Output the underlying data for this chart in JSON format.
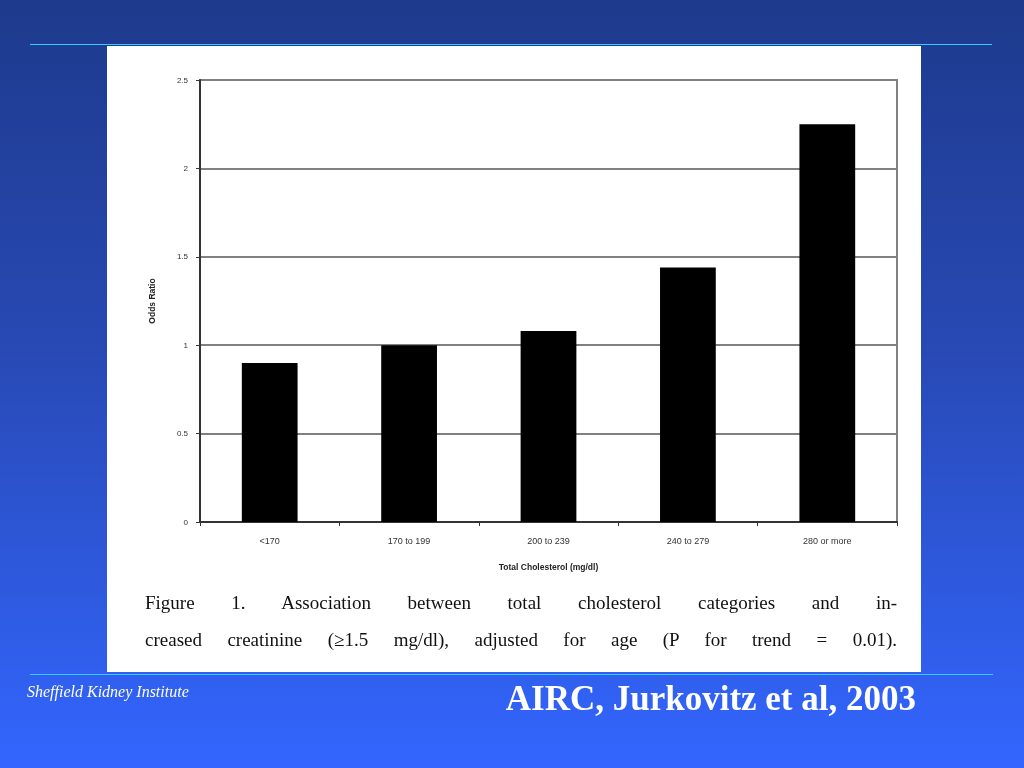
{
  "chart_data": {
    "type": "bar",
    "xlabel": "Total Cholesterol (mg/dl)",
    "ylabel": "Odds Ratio",
    "categories": [
      "<170",
      "170 to 199",
      "200 to 239",
      "240 to 279",
      "280 or more"
    ],
    "values": [
      0.9,
      1.0,
      1.08,
      1.44,
      2.25
    ],
    "color": "#000000",
    "ylim": [
      0,
      2.5
    ],
    "yticks": [
      0,
      0.5,
      1,
      1.5,
      2,
      2.5
    ],
    "grid": "y",
    "annotations": [
      "Figure 1. Association between total cholesterol categories and in-\ncreased creatinine (≥1.5 mg/dl), adjusted for age (P for trend = 0.01).",
      "Sheffield Kidney Institute",
      "AIRC, Jurkovitz et al, 2003"
    ]
  }
}
